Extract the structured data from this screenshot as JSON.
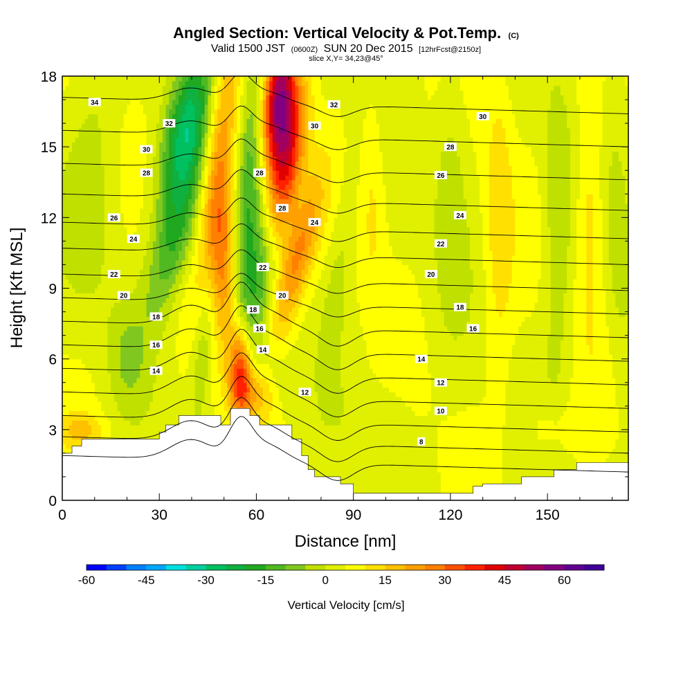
{
  "chart_data": {
    "type": "heatmap",
    "title": "Angled Section: Vertical Velocity & Pot.Temp.",
    "title_unit": "(C)",
    "subtitle": {
      "valid_prefix": "Valid 1500 JST",
      "utc": "(0600Z)",
      "date": "SUN 20 Dec 2015",
      "forecast": "[12hrFcst@2150z]",
      "slice": "slice X,Y= 34,23@45°"
    },
    "xlabel": "Distance [nm]",
    "ylabel": "Height [Kft MSL]",
    "xlim": [
      0,
      175
    ],
    "ylim": [
      0,
      18
    ],
    "x_ticks": [
      0,
      30,
      60,
      90,
      120,
      150
    ],
    "y_ticks": [
      0,
      3,
      6,
      9,
      12,
      15,
      18
    ],
    "grid": false,
    "colorbar": {
      "label": "Vertical Velocity [cm/s]",
      "min": -60,
      "max": 70,
      "step": 5,
      "tick_values": [
        -60,
        -45,
        -30,
        -15,
        0,
        15,
        30,
        45,
        60
      ],
      "tick_labels": [
        "-60",
        "-45",
        "-30",
        "-15",
        "0",
        "15",
        "30",
        "45",
        "60"
      ],
      "colors": [
        "#0000ff",
        "#0040ff",
        "#0080ff",
        "#00a8ff",
        "#00e0e0",
        "#00d0a0",
        "#00c060",
        "#10b040",
        "#20a820",
        "#50b820",
        "#80c820",
        "#c0e000",
        "#e0f000",
        "#ffff00",
        "#ffe000",
        "#ffc000",
        "#ffa000",
        "#ff8000",
        "#ff5000",
        "#ff2000",
        "#e00000",
        "#c00030",
        "#a00060",
        "#800080",
        "#600090",
        "#400098"
      ]
    },
    "terrain": [
      [
        0,
        2.0
      ],
      [
        3,
        2.0
      ],
      [
        3,
        2.3
      ],
      [
        6,
        2.3
      ],
      [
        6,
        2.6
      ],
      [
        30,
        2.6
      ],
      [
        30,
        2.9
      ],
      [
        32,
        2.9
      ],
      [
        32,
        3.2
      ],
      [
        36,
        3.2
      ],
      [
        36,
        3.6
      ],
      [
        49,
        3.6
      ],
      [
        49,
        3.2
      ],
      [
        52,
        3.2
      ],
      [
        52,
        3.9
      ],
      [
        58,
        3.9
      ],
      [
        58,
        3.6
      ],
      [
        61,
        3.6
      ],
      [
        61,
        3.2
      ],
      [
        71,
        3.2
      ],
      [
        71,
        2.6
      ],
      [
        74,
        2.6
      ],
      [
        74,
        1.9
      ],
      [
        76,
        1.9
      ],
      [
        76,
        1.3
      ],
      [
        78,
        1.3
      ],
      [
        78,
        1.0
      ],
      [
        86,
        1.0
      ],
      [
        86,
        0.7
      ],
      [
        90,
        0.7
      ],
      [
        90,
        0.3
      ],
      [
        127,
        0.3
      ],
      [
        127,
        0.6
      ],
      [
        130,
        0.6
      ],
      [
        130,
        0.7
      ],
      [
        142,
        0.7
      ],
      [
        142,
        1.0
      ],
      [
        152,
        1.0
      ],
      [
        152,
        1.3
      ],
      [
        159,
        1.3
      ],
      [
        159,
        1.6
      ],
      [
        175,
        1.6
      ]
    ],
    "velocity_features": [
      {
        "x": 38,
        "y": 16.0,
        "value": -22,
        "sx": 4.5,
        "sy": 2.2,
        "tilt": 0.5
      },
      {
        "x": 37,
        "y": 13.0,
        "value": -16,
        "sx": 4.5,
        "sy": 3.0,
        "tilt": 0.5
      },
      {
        "x": 44,
        "y": 7.0,
        "value": -14,
        "sx": 2.5,
        "sy": 2.5,
        "tilt": 0.2
      },
      {
        "x": 34,
        "y": 10.5,
        "value": -8,
        "sx": 4.5,
        "sy": 2.0,
        "tilt": 0.7
      },
      {
        "x": 48,
        "y": 14.0,
        "value": 22,
        "sx": 3.5,
        "sy": 4.0,
        "tilt": 0.2
      },
      {
        "x": 50,
        "y": 10.0,
        "value": 18,
        "sx": 3.0,
        "sy": 2.5,
        "tilt": 0.0
      },
      {
        "x": 58,
        "y": 14.0,
        "value": -18,
        "sx": 3.0,
        "sy": 4.5,
        "tilt": 0.15
      },
      {
        "x": 61,
        "y": 9.5,
        "value": -16,
        "sx": 3.5,
        "sy": 2.5,
        "tilt": 0.3
      },
      {
        "x": 66,
        "y": 5.0,
        "value": -8,
        "sx": 4.0,
        "sy": 1.2,
        "tilt": -0.5
      },
      {
        "x": 67,
        "y": 17.0,
        "value": 48,
        "sx": 3.5,
        "sy": 2.0,
        "tilt": 0.2
      },
      {
        "x": 69,
        "y": 14.0,
        "value": 32,
        "sx": 3.5,
        "sy": 2.5,
        "tilt": 0.4
      },
      {
        "x": 72,
        "y": 10.0,
        "value": 22,
        "sx": 3.5,
        "sy": 2.5,
        "tilt": 0.6
      },
      {
        "x": 55,
        "y": 5.5,
        "value": 34,
        "sx": 2.5,
        "sy": 1.4,
        "tilt": 0.0
      },
      {
        "x": 60,
        "y": 4.5,
        "value": 12,
        "sx": 6.0,
        "sy": 0.8,
        "tilt": 0.0
      },
      {
        "x": 6,
        "y": 3.0,
        "value": 10,
        "sx": 5.0,
        "sy": 0.5,
        "tilt": 0.0
      },
      {
        "x": 10,
        "y": 14.0,
        "value": -6,
        "sx": 6.0,
        "sy": 4.0,
        "tilt": 0.0
      },
      {
        "x": 20,
        "y": 6.0,
        "value": -7,
        "sx": 4.0,
        "sy": 1.5,
        "tilt": 0.0
      },
      {
        "x": 85,
        "y": 9.5,
        "value": -7,
        "sx": 3.0,
        "sy": 3.0,
        "tilt": 0.3
      },
      {
        "x": 96,
        "y": 13.0,
        "value": 8,
        "sx": 3.0,
        "sy": 3.0,
        "tilt": 0.0
      },
      {
        "x": 120,
        "y": 13.5,
        "value": -8,
        "sx": 3.5,
        "sy": 3.5,
        "tilt": 0.0
      },
      {
        "x": 135,
        "y": 12.0,
        "value": 9,
        "sx": 3.0,
        "sy": 5.0,
        "tilt": 0.0
      },
      {
        "x": 153,
        "y": 11.0,
        "value": -8,
        "sx": 3.0,
        "sy": 5.0,
        "tilt": 0.0
      },
      {
        "x": 163,
        "y": 13.0,
        "value": 10,
        "sx": 3.0,
        "sy": 4.0,
        "tilt": 0.0
      },
      {
        "x": 172,
        "y": 11.0,
        "value": -6,
        "sx": 3.0,
        "sy": 4.0,
        "tilt": 0.0
      },
      {
        "x": 100,
        "y": 3.5,
        "value": -4,
        "sx": 5.0,
        "sy": 1.0,
        "tilt": 0.0
      },
      {
        "x": 150,
        "y": 3.0,
        "value": 6,
        "sx": 6.0,
        "sy": 1.0,
        "tilt": 0.0
      }
    ],
    "isentropes": {
      "levels": [
        6,
        8,
        10,
        12,
        14,
        16,
        18,
        20,
        22,
        24,
        26,
        28,
        30,
        32,
        34
      ],
      "base_height": {
        "6": 1.9,
        "8": 2.7,
        "10": 3.6,
        "12": 4.6,
        "14": 5.6,
        "16": 6.6,
        "18": 7.6,
        "20": 8.6,
        "22": 9.6,
        "24": 10.7,
        "26": 11.8,
        "28": 13.0,
        "30": 14.3,
        "32": 15.7,
        "34": 17.1
      },
      "disturbance": [
        {
          "x": 40,
          "amp": 0.7,
          "width": 9
        },
        {
          "x": 55,
          "amp": 1.3,
          "width": 5
        },
        {
          "x": 63,
          "amp": 0.6,
          "width": 8
        },
        {
          "x": 85,
          "amp": -0.6,
          "width": 7
        }
      ],
      "slope": -0.004
    },
    "contour_labels": [
      {
        "text": "34",
        "x": 10,
        "y": 16.9
      },
      {
        "text": "32",
        "x": 33,
        "y": 16.0
      },
      {
        "text": "30",
        "x": 26,
        "y": 14.9
      },
      {
        "text": "28",
        "x": 26,
        "y": 13.9
      },
      {
        "text": "26",
        "x": 16,
        "y": 12.0
      },
      {
        "text": "24",
        "x": 22,
        "y": 11.1
      },
      {
        "text": "22",
        "x": 16,
        "y": 9.6
      },
      {
        "text": "20",
        "x": 19,
        "y": 8.7
      },
      {
        "text": "18",
        "x": 29,
        "y": 7.8
      },
      {
        "text": "16",
        "x": 29,
        "y": 6.6
      },
      {
        "text": "14",
        "x": 29,
        "y": 5.5
      },
      {
        "text": "32",
        "x": 84,
        "y": 16.8
      },
      {
        "text": "30",
        "x": 78,
        "y": 15.9
      },
      {
        "text": "28",
        "x": 61,
        "y": 13.9
      },
      {
        "text": "28",
        "x": 68,
        "y": 12.4
      },
      {
        "text": "24",
        "x": 78,
        "y": 11.8
      },
      {
        "text": "22",
        "x": 62,
        "y": 9.9
      },
      {
        "text": "20",
        "x": 68,
        "y": 8.7
      },
      {
        "text": "18",
        "x": 59,
        "y": 8.1
      },
      {
        "text": "16",
        "x": 61,
        "y": 7.3
      },
      {
        "text": "14",
        "x": 62,
        "y": 6.4
      },
      {
        "text": "12",
        "x": 75,
        "y": 4.6
      },
      {
        "text": "30",
        "x": 130,
        "y": 16.3
      },
      {
        "text": "28",
        "x": 120,
        "y": 15.0
      },
      {
        "text": "26",
        "x": 117,
        "y": 13.8
      },
      {
        "text": "24",
        "x": 123,
        "y": 12.1
      },
      {
        "text": "22",
        "x": 117,
        "y": 10.9
      },
      {
        "text": "20",
        "x": 114,
        "y": 9.6
      },
      {
        "text": "18",
        "x": 123,
        "y": 8.2
      },
      {
        "text": "16",
        "x": 127,
        "y": 7.3
      },
      {
        "text": "14",
        "x": 111,
        "y": 6.0
      },
      {
        "text": "12",
        "x": 117,
        "y": 5.0
      },
      {
        "text": "10",
        "x": 117,
        "y": 3.8
      },
      {
        "text": "8",
        "x": 111,
        "y": 2.5
      }
    ]
  }
}
